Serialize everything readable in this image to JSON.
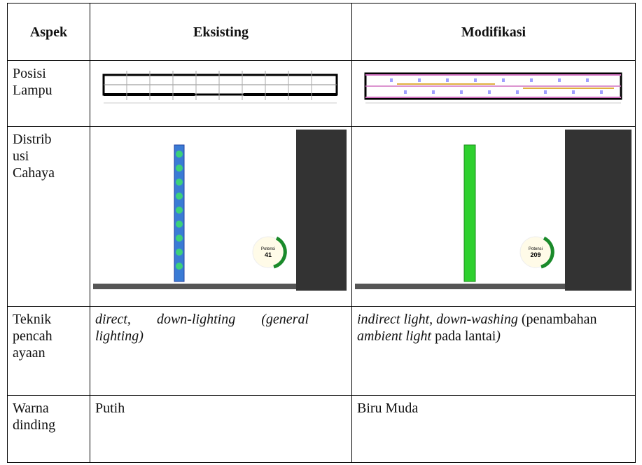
{
  "table": {
    "header": [
      "Aspek",
      "Eksisting",
      "Modifikasi"
    ],
    "rows": [
      {
        "aspect": [
          "Posisi",
          "Lampu"
        ]
      },
      {
        "aspect": [
          "Distrib",
          "usi",
          "Cahaya"
        ],
        "existing_gauge": {
          "label": "Potensi",
          "value": "41"
        },
        "modified_gauge": {
          "label": "Potensi",
          "value": "209"
        }
      },
      {
        "aspect": [
          "Teknik",
          "pencah",
          "ayaan"
        ],
        "existing": [
          {
            "text": "direct, down-lighting (general lighting)",
            "italic": true
          }
        ],
        "modified": [
          {
            "text": "indirect light, down-washing",
            "italic": true
          },
          {
            "text": " (penambahan ",
            "italic": false
          },
          {
            "text": "ambient light",
            "italic": true
          },
          {
            "text": " pada lantai",
            "italic": false
          },
          {
            "text": ")",
            "italic": true
          }
        ]
      },
      {
        "aspect": [
          "Warna",
          "dinding"
        ],
        "existing": [
          {
            "text": "Putih",
            "italic": false
          }
        ],
        "modified": [
          {
            "text": "Biru Muda",
            "italic": false
          }
        ]
      }
    ]
  }
}
